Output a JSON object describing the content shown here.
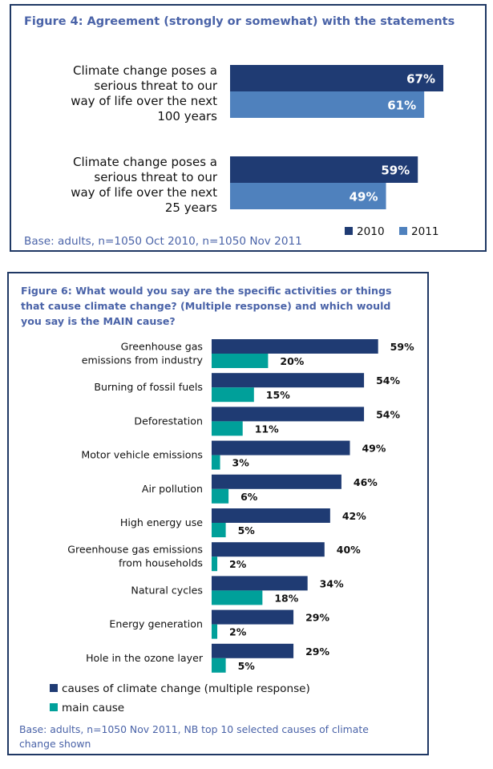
{
  "chart_data": [
    {
      "type": "bar",
      "orientation": "horizontal",
      "title": "Figure 4: Agreement (strongly or somewhat) with the statements",
      "categories": [
        "Climate change poses a serious threat to our way of life over the next 100 years",
        "Climate change poses a serious threat to our way of life over the next 25 years"
      ],
      "category_lines": [
        [
          "Climate change poses a",
          "serious threat to our",
          "way of life over the next",
          "100 years"
        ],
        [
          "Climate change poses a",
          "serious threat to our",
          "way of life over the next",
          "25 years"
        ]
      ],
      "series": [
        {
          "name": "2010",
          "values": [
            67,
            59
          ],
          "labels": [
            "67%",
            "59%"
          ],
          "color": "#1f3b73"
        },
        {
          "name": "2011",
          "values": [
            61,
            49
          ],
          "labels": [
            "61%",
            "49%"
          ],
          "color": "#4f81bd"
        }
      ],
      "legend_position": "bottom-right",
      "grid": false,
      "note": "Base: adults, n=1050 Oct 2010, n=1050 Nov 2011"
    },
    {
      "type": "bar",
      "orientation": "horizontal",
      "title": "Figure 6: What would you say are the specific activities or things that cause climate change? (Multiple response) and which would you say is the MAIN cause?",
      "title_lines": [
        "Figure 6: What would you say are the specific activities or things",
        "that cause climate change? (Multiple response) and which would",
        "you say is the MAIN cause?"
      ],
      "categories": [
        "Greenhouse gas emissions from industry",
        "Burning of fossil fuels",
        "Deforestation",
        "Motor vehicle emissions",
        "Air pollution",
        "High energy use",
        "Greenhouse gas emissions from households",
        "Natural cycles",
        "Energy generation",
        "Hole in the ozone layer"
      ],
      "category_lines": [
        [
          "Greenhouse gas",
          "emissions from  industry"
        ],
        [
          "Burning of fossil fuels"
        ],
        [
          "Deforestation"
        ],
        [
          "Motor vehicle emissions"
        ],
        [
          "Air pollution"
        ],
        [
          "High energy use"
        ],
        [
          "Greenhouse gas emissions",
          "from  households"
        ],
        [
          "Natural cycles"
        ],
        [
          "Energy generation"
        ],
        [
          "Hole in the ozone layer"
        ]
      ],
      "series": [
        {
          "name": "causes of climate change (multiple response)",
          "values": [
            59,
            54,
            54,
            49,
            46,
            42,
            40,
            34,
            29,
            29
          ],
          "labels": [
            "59%",
            "54%",
            "54%",
            "49%",
            "46%",
            "42%",
            "40%",
            "34%",
            "29%",
            "29%"
          ],
          "color": "#1f3b73"
        },
        {
          "name": "main cause",
          "values": [
            20,
            15,
            11,
            3,
            6,
            5,
            2,
            18,
            2,
            5
          ],
          "labels": [
            "20%",
            "15%",
            "11%",
            "3%",
            "6%",
            "5%",
            "2%",
            "18%",
            "2%",
            "5%"
          ],
          "color": "#00a09a"
        }
      ],
      "legend_position": "bottom-left",
      "grid": false,
      "note_lines": [
        "Base: adults, n=1050 Nov 2011, NB top 10 selected causes of climate",
        "change shown"
      ]
    }
  ]
}
